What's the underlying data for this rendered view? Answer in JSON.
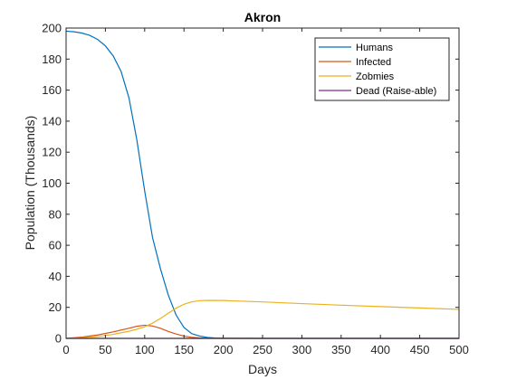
{
  "chart_data": {
    "type": "line",
    "title": "Akron",
    "xlabel": "Days",
    "ylabel": "Population (Thousands)",
    "xlim": [
      0,
      500
    ],
    "ylim": [
      0,
      200
    ],
    "xticks": [
      0,
      50,
      100,
      150,
      200,
      250,
      300,
      350,
      400,
      450,
      500
    ],
    "yticks": [
      0,
      20,
      40,
      60,
      80,
      100,
      120,
      140,
      160,
      180,
      200
    ],
    "grid": false,
    "legend_position": "top-right",
    "series": [
      {
        "name": "Humans",
        "color": "#0072BD",
        "points": [
          [
            0,
            198
          ],
          [
            10,
            197.6
          ],
          [
            20,
            196.8
          ],
          [
            30,
            195.3
          ],
          [
            40,
            192.7
          ],
          [
            50,
            188.5
          ],
          [
            60,
            182
          ],
          [
            70,
            172
          ],
          [
            80,
            155
          ],
          [
            90,
            128
          ],
          [
            100,
            95
          ],
          [
            110,
            65
          ],
          [
            120,
            45
          ],
          [
            130,
            28
          ],
          [
            140,
            15
          ],
          [
            150,
            7
          ],
          [
            160,
            3
          ],
          [
            170,
            1.5
          ],
          [
            180,
            0.6
          ],
          [
            190,
            0.2
          ],
          [
            200,
            0.1
          ],
          [
            250,
            0
          ],
          [
            300,
            0
          ],
          [
            350,
            0
          ],
          [
            400,
            0
          ],
          [
            450,
            0
          ],
          [
            500,
            0
          ]
        ]
      },
      {
        "name": "Infected",
        "color": "#D95319",
        "points": [
          [
            0,
            0
          ],
          [
            20,
            0.8
          ],
          [
            40,
            2.2
          ],
          [
            60,
            4.2
          ],
          [
            80,
            6.5
          ],
          [
            90,
            7.8
          ],
          [
            100,
            8.5
          ],
          [
            110,
            8
          ],
          [
            120,
            6.5
          ],
          [
            130,
            4.5
          ],
          [
            140,
            2.8
          ],
          [
            150,
            1.5
          ],
          [
            160,
            0.7
          ],
          [
            170,
            0.3
          ],
          [
            180,
            0.1
          ],
          [
            200,
            0
          ],
          [
            250,
            0
          ],
          [
            300,
            0
          ],
          [
            350,
            0
          ],
          [
            400,
            0
          ],
          [
            450,
            0
          ],
          [
            500,
            0
          ]
        ]
      },
      {
        "name": "Zobmies",
        "color": "#EDB120",
        "points": [
          [
            0,
            0
          ],
          [
            20,
            0.4
          ],
          [
            40,
            1.2
          ],
          [
            60,
            2.6
          ],
          [
            80,
            4.6
          ],
          [
            90,
            5.9
          ],
          [
            100,
            7.5
          ],
          [
            110,
            9.8
          ],
          [
            120,
            12.8
          ],
          [
            130,
            16.2
          ],
          [
            140,
            19.5
          ],
          [
            150,
            22
          ],
          [
            160,
            23.6
          ],
          [
            170,
            24.3
          ],
          [
            180,
            24.5
          ],
          [
            200,
            24.4
          ],
          [
            250,
            23.5
          ],
          [
            300,
            22.4
          ],
          [
            350,
            21.4
          ],
          [
            400,
            20.5
          ],
          [
            450,
            19.6
          ],
          [
            500,
            18.7
          ]
        ]
      },
      {
        "name": "Dead (Raise-able)",
        "color": "#7E2F8E",
        "points": [
          [
            0,
            0
          ],
          [
            500,
            0
          ]
        ]
      }
    ]
  }
}
